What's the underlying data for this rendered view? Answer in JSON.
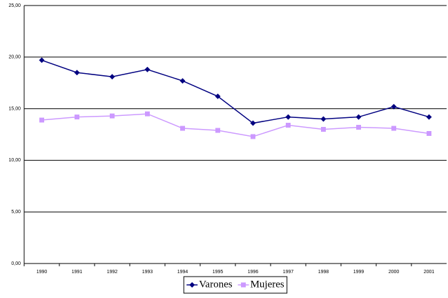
{
  "chart_data": {
    "type": "line",
    "categories": [
      "1990",
      "1991",
      "1992",
      "1993",
      "1994",
      "1995",
      "1996",
      "1997",
      "1998",
      "1999",
      "2000",
      "2001"
    ],
    "series": [
      {
        "name": "Varones",
        "color": "#000080",
        "marker": "diamond",
        "values": [
          19.7,
          18.5,
          18.1,
          18.8,
          17.7,
          16.2,
          13.6,
          14.2,
          14.0,
          14.2,
          15.2,
          14.2
        ]
      },
      {
        "name": "Mujeres",
        "color": "#cc99ff",
        "marker": "square",
        "values": [
          13.9,
          14.2,
          14.3,
          14.5,
          13.1,
          12.9,
          12.3,
          13.4,
          13.0,
          13.2,
          13.1,
          12.6
        ]
      }
    ],
    "ylim": [
      0,
      25
    ],
    "yticks": [
      {
        "value": 0,
        "label": "0,00"
      },
      {
        "value": 5,
        "label": "5,00"
      },
      {
        "value": 10,
        "label": "10,00"
      },
      {
        "value": 15,
        "label": "15,00"
      },
      {
        "value": 20,
        "label": "20,00"
      },
      {
        "value": 25,
        "label": "25,00"
      }
    ],
    "grid": true,
    "legend": "bottom"
  }
}
